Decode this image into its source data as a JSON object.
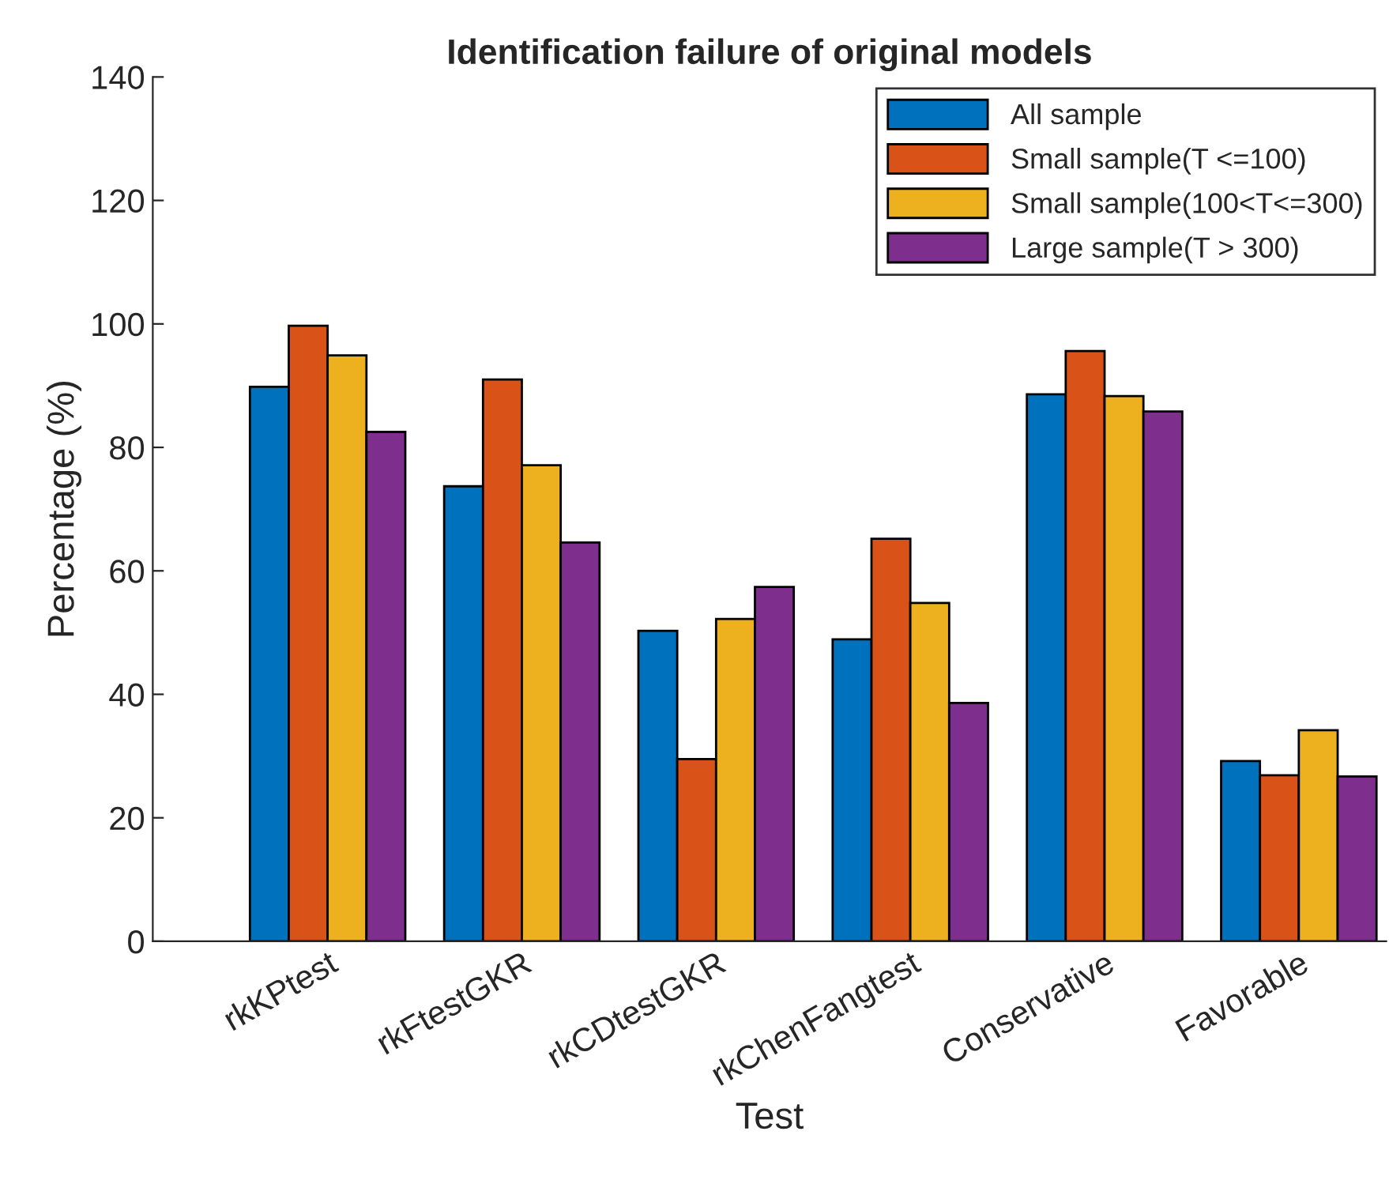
{
  "chart_data": {
    "type": "bar",
    "title": "Identification failure of original models",
    "xlabel": "Test",
    "ylabel": "Percentage (%)",
    "categories": [
      "rkKPtest",
      "rkFtestGKR",
      "rkCDtestGKR",
      "rkChenFangtest",
      "Conservative",
      "Favorable"
    ],
    "series": [
      {
        "name": "All sample",
        "color": "#0072bd",
        "values": [
          89.8,
          73.7,
          50.3,
          48.9,
          88.6,
          29.2
        ]
      },
      {
        "name": "Small sample(T <=100)",
        "color": "#d95319",
        "values": [
          99.7,
          91.0,
          29.5,
          65.2,
          95.6,
          26.9
        ]
      },
      {
        "name": "Small sample(100<T<=300)",
        "color": "#edb120",
        "values": [
          94.9,
          77.1,
          52.2,
          54.8,
          88.3,
          34.2
        ]
      },
      {
        "name": "Large sample(T > 300)",
        "color": "#7e2f8e",
        "values": [
          82.5,
          64.6,
          57.4,
          38.6,
          85.8,
          26.7
        ]
      }
    ],
    "ylim": [
      0,
      140
    ],
    "yticks": [
      0,
      20,
      40,
      60,
      80,
      100,
      120,
      140
    ],
    "grid": false,
    "legend": "top right"
  }
}
